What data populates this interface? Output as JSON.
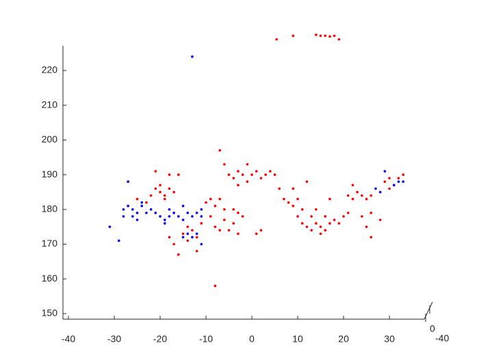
{
  "chart_data": {
    "type": "scatter",
    "xlim": [
      -41.2,
      37.6
    ],
    "ylim": [
      148.4,
      227.1
    ],
    "xticks": [
      -40,
      -30,
      -20,
      -10,
      0,
      10,
      20,
      30
    ],
    "yticks": [
      150,
      160,
      170,
      180,
      190,
      200,
      210,
      220
    ],
    "zticks": [
      0,
      -40
    ],
    "series": [
      {
        "color": "#ff0000",
        "x": [
          -22,
          -21,
          -20,
          -19,
          -18,
          -20,
          -19,
          -17,
          -21,
          -18,
          -16,
          -15,
          -14,
          -13,
          -12,
          -14,
          -11,
          -16,
          -12,
          -18,
          -17,
          -10,
          -9,
          -8,
          -7,
          -6,
          -9,
          -8,
          -7,
          -5,
          -4,
          -3,
          -2,
          -6,
          -4,
          -3,
          -6,
          -5,
          -4,
          -3,
          -2,
          -1,
          0,
          1,
          2,
          3,
          4,
          -3,
          -7,
          -1,
          5,
          1,
          2,
          -8,
          6,
          7,
          8,
          9,
          10,
          11,
          9,
          12,
          10,
          11,
          12,
          13,
          14,
          15,
          16,
          17,
          15,
          13,
          14,
          18,
          19,
          16,
          20,
          17,
          21,
          22,
          23,
          24,
          25,
          22,
          26,
          21,
          24,
          26,
          25,
          26,
          28,
          29,
          30,
          31,
          32,
          30,
          33,
          5.4,
          9,
          14,
          15,
          16,
          17,
          18,
          19,
          -27,
          -25,
          -23
        ],
        "y": [
          184,
          186,
          185,
          184,
          186,
          187,
          183,
          185,
          191,
          190,
          190,
          173,
          175,
          174,
          172,
          171,
          176,
          167,
          168,
          172,
          170,
          182,
          183,
          181,
          183,
          180,
          178,
          175,
          174,
          174,
          176,
          179,
          178,
          177,
          180,
          173,
          193,
          190,
          189,
          191,
          190,
          188,
          190,
          191,
          189,
          190,
          191,
          187,
          197,
          193,
          190,
          173,
          174,
          158,
          186,
          183,
          182,
          181,
          183,
          180,
          186,
          188,
          178,
          176,
          175,
          174,
          176,
          175,
          174,
          176,
          173,
          178,
          180,
          177,
          176,
          178,
          178,
          183,
          184,
          183,
          185,
          184,
          183,
          187,
          184,
          179,
          178,
          179,
          175,
          172,
          177,
          188,
          189,
          187,
          189,
          186,
          190,
          229,
          230,
          230.3,
          230,
          230,
          229.8,
          230,
          229,
          188,
          183,
          182
        ]
      },
      {
        "color": "#0000ff",
        "x": [
          -26,
          -25,
          -24,
          -27,
          -28,
          -26,
          -23,
          -25,
          -24,
          -22,
          -28,
          -21,
          -20,
          -19,
          -18,
          -17,
          -16,
          -15,
          -14,
          -13,
          -12,
          -11,
          -18,
          -15,
          -19,
          -14,
          -13,
          -15,
          -12,
          -31,
          -29,
          -11,
          -13,
          -27,
          27,
          28,
          29,
          31,
          32,
          33,
          -11
        ],
        "y": [
          180,
          179,
          181,
          181,
          180,
          178,
          179,
          177,
          182,
          180,
          178,
          179,
          178,
          177,
          178,
          179,
          178,
          177,
          179,
          178,
          179,
          178,
          180,
          181,
          176,
          173,
          172,
          172,
          173,
          175,
          171,
          170,
          224,
          188,
          186,
          185,
          191,
          187,
          188,
          188,
          180
        ]
      }
    ]
  }
}
